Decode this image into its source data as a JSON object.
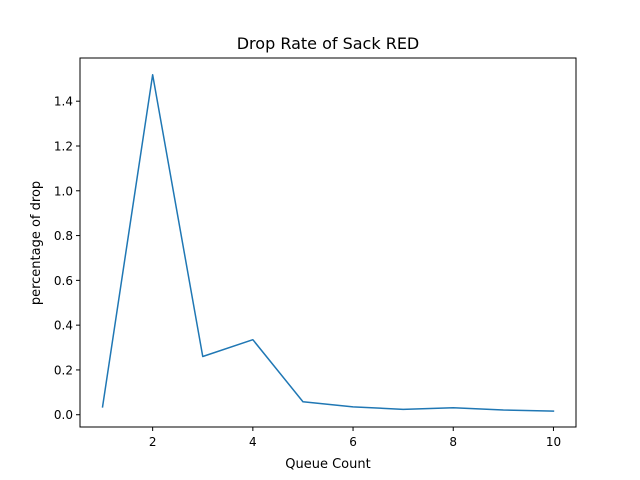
{
  "chart_data": {
    "type": "line",
    "title": "Drop Rate of Sack RED",
    "xlabel": "Queue Count",
    "ylabel": "percentage of drop",
    "xlim": [
      0.55,
      10.45
    ],
    "ylim": [
      -0.0548,
      1.5929
    ],
    "x_ticks": [
      2,
      4,
      6,
      8,
      10
    ],
    "y_ticks": [
      0.0,
      0.2,
      0.4,
      0.6,
      0.8,
      1.0,
      1.2,
      1.4
    ],
    "x_tick_labels": [
      "2",
      "4",
      "6",
      "8",
      "10"
    ],
    "y_tick_labels": [
      "0.0",
      "0.2",
      "0.4",
      "0.6",
      "0.8",
      "1.0",
      "1.2",
      "1.4"
    ],
    "grid": false,
    "series": [
      {
        "color": "#1f77b4",
        "x": [
          1,
          2,
          3,
          4,
          5,
          6,
          7,
          8,
          9,
          10
        ],
        "y": [
          0.035,
          1.518,
          0.26,
          0.335,
          0.058,
          0.035,
          0.024,
          0.031,
          0.021,
          0.016
        ]
      }
    ]
  }
}
